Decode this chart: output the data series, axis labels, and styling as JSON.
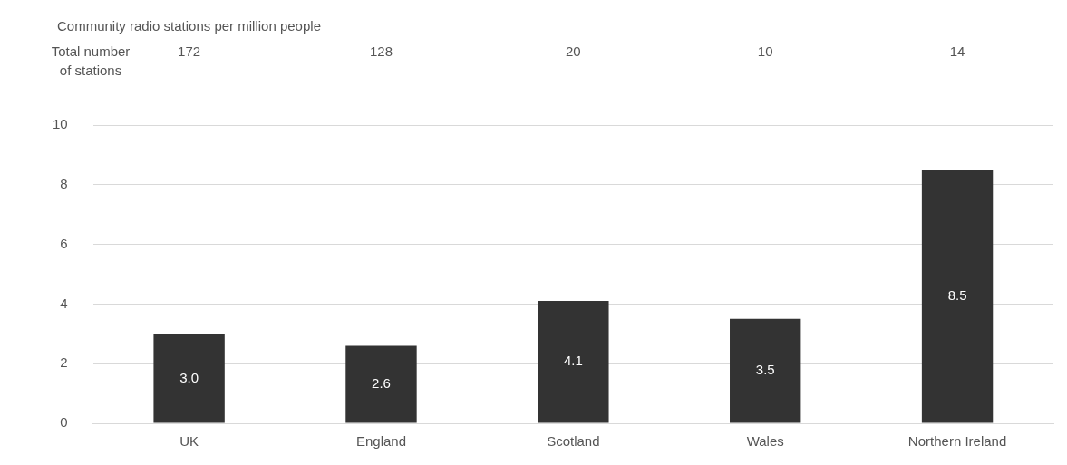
{
  "chart_data": {
    "type": "bar",
    "title": "Community radio stations per million people",
    "categories": [
      "UK",
      "England",
      "Scotland",
      "Wales",
      "Northern Ireland"
    ],
    "values": [
      3.0,
      2.6,
      4.1,
      3.5,
      8.5
    ],
    "value_labels": [
      "3.0",
      "2.6",
      "4.1",
      "3.5",
      "8.5"
    ],
    "color": "#333333",
    "ylim": [
      0,
      10
    ],
    "yticks": [
      0,
      2,
      4,
      6,
      8,
      10
    ],
    "grid": "y",
    "legend": false,
    "annotations": [
      "Total number of stations",
      "172",
      "128",
      "20",
      "10",
      "14"
    ]
  }
}
